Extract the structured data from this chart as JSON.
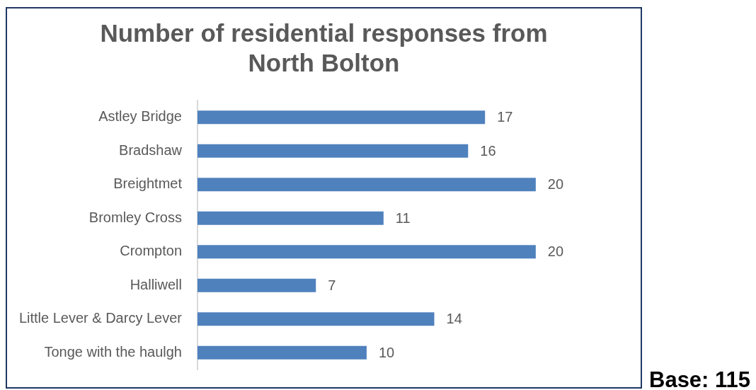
{
  "chart_data": {
    "type": "bar",
    "title": "Number of residential responses from North Bolton",
    "orientation": "horizontal",
    "categories": [
      "Astley Bridge",
      "Bradshaw",
      "Breightmet",
      "Bromley Cross",
      "Crompton",
      "Halliwell",
      "Little Lever & Darcy Lever",
      "Tonge with the haulgh"
    ],
    "values": [
      17,
      16,
      20,
      11,
      20,
      7,
      14,
      10
    ],
    "color": "#4f81bd",
    "data_labels": true,
    "annotations": [
      "Base: 115"
    ]
  }
}
